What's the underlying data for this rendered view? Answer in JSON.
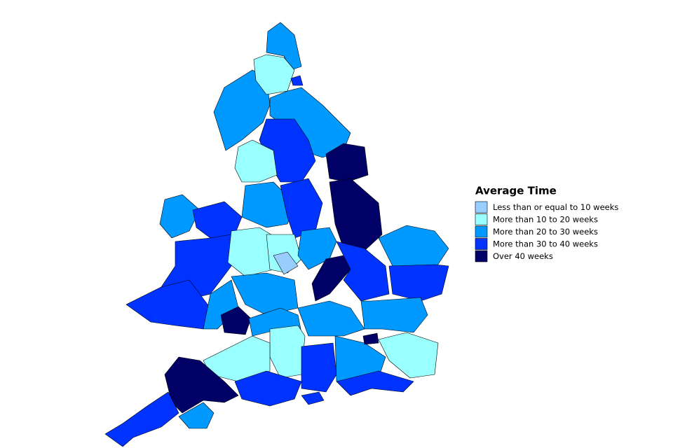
{
  "legend": {
    "title": "Average Time",
    "items": [
      {
        "label": "Less than or equal to 10 weeks",
        "color": "#99ccff"
      },
      {
        "label": "More than 10 to 20 weeks",
        "color": "#99ffff"
      },
      {
        "label": "More than 20 to 30 weeks",
        "color": "#0099ff"
      },
      {
        "label": "More than 30 to 40 weeks",
        "color": "#0033ff"
      },
      {
        "label": "Over 40 weeks",
        "color": "#000066"
      }
    ]
  }
}
